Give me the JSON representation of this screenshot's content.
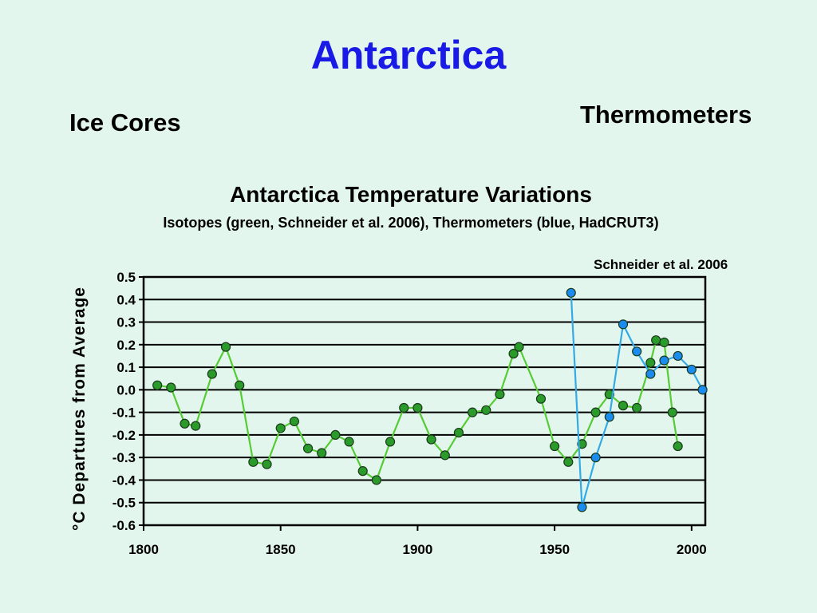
{
  "slide": {
    "title": "Antarctica",
    "left_label": "Ice Cores",
    "right_label": "Thermometers"
  },
  "chart_data": {
    "type": "line",
    "title": "Antarctica Temperature Variations",
    "subtitle": "Isotopes (green, Schneider et al. 2006), Thermometers (blue, HadCRUT3)",
    "source": "Schneider et al. 2006",
    "ylabel": "°C Departures from Average",
    "xlabel": "",
    "xlim": [
      1800,
      2005
    ],
    "ylim": [
      -0.6,
      0.5
    ],
    "xticks": [
      "1800",
      "1850",
      "1900",
      "1950",
      "2000"
    ],
    "yticks": [
      "0.5",
      "0.4",
      "0.3",
      "0.2",
      "0.1",
      "0.0",
      "-0.1",
      "-0.2",
      "-0.3",
      "-0.4",
      "-0.5",
      "-0.6"
    ],
    "grid": true,
    "legend": "none",
    "series": [
      {
        "color": "#2a9a2a",
        "line_color": "#55cc33",
        "points": [
          [
            1805,
            0.02
          ],
          [
            1810,
            0.01
          ],
          [
            1815,
            -0.15
          ],
          [
            1819,
            -0.16
          ],
          [
            1825,
            0.07
          ],
          [
            1830,
            0.19
          ],
          [
            1835,
            0.02
          ],
          [
            1840,
            -0.32
          ],
          [
            1845,
            -0.33
          ],
          [
            1850,
            -0.17
          ],
          [
            1855,
            -0.14
          ],
          [
            1860,
            -0.26
          ],
          [
            1865,
            -0.28
          ],
          [
            1870,
            -0.2
          ],
          [
            1875,
            -0.23
          ],
          [
            1880,
            -0.36
          ],
          [
            1885,
            -0.4
          ],
          [
            1890,
            -0.23
          ],
          [
            1895,
            -0.08
          ],
          [
            1900,
            -0.08
          ],
          [
            1905,
            -0.22
          ],
          [
            1910,
            -0.29
          ],
          [
            1915,
            -0.19
          ],
          [
            1920,
            -0.1
          ],
          [
            1925,
            -0.09
          ],
          [
            1930,
            -0.02
          ],
          [
            1935,
            0.16
          ],
          [
            1937,
            0.19
          ],
          [
            1945,
            -0.04
          ],
          [
            1950,
            -0.25
          ],
          [
            1955,
            -0.32
          ],
          [
            1960,
            -0.24
          ],
          [
            1965,
            -0.1
          ],
          [
            1970,
            -0.02
          ],
          [
            1975,
            -0.07
          ],
          [
            1980,
            -0.08
          ],
          [
            1985,
            0.12
          ],
          [
            1987,
            0.22
          ],
          [
            1990,
            0.21
          ],
          [
            1993,
            -0.1
          ],
          [
            1995,
            -0.25
          ]
        ]
      },
      {
        "color": "#1a8cf0",
        "line_color": "#33aae6",
        "points": [
          [
            1956,
            0.43
          ],
          [
            1960,
            -0.52
          ],
          [
            1965,
            -0.3
          ],
          [
            1970,
            -0.12
          ],
          [
            1975,
            0.29
          ],
          [
            1980,
            0.17
          ],
          [
            1985,
            0.07
          ],
          [
            1990,
            0.13
          ],
          [
            1995,
            0.15
          ],
          [
            2000,
            0.09
          ],
          [
            2004,
            0.0
          ]
        ]
      }
    ]
  }
}
